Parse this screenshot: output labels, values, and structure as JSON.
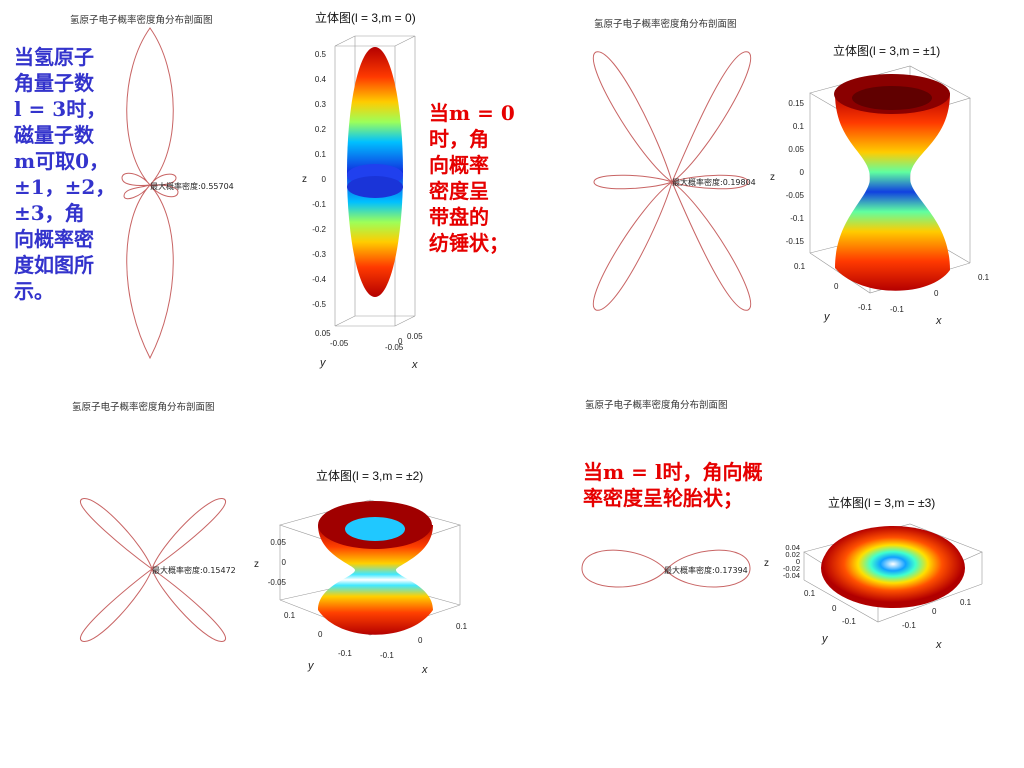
{
  "panels": [
    {
      "caption": "氢原子电子概率密度角分布剖面图",
      "max_label": "最大概率密度:0.55704",
      "title": "立体图(l = 3,m = 0)",
      "z_ticks": [
        "0.5",
        "0.4",
        "0.3",
        "0.2",
        "0.1",
        "0",
        "-0.1",
        "-0.2",
        "-0.3",
        "-0.4",
        "-0.5"
      ],
      "bottom_ticks": [
        "0.05",
        "-0.05",
        "0",
        "0.05",
        "-0.05"
      ],
      "x_label": "x",
      "y_label": "y",
      "z_label": "z"
    },
    {
      "caption": "氢原子电子概率密度角分布剖面图",
      "max_label": "最大概率密度:0.19804",
      "title": "立体图(l = 3,m = ±1)",
      "z_ticks": [
        "0.15",
        "0.1",
        "0.05",
        "0",
        "-0.05",
        "-0.1",
        "-0.15"
      ],
      "bottom_ticks": [
        "0.1",
        "0",
        "-0.1",
        "-0.1",
        "0",
        "0.1"
      ],
      "x_label": "x",
      "y_label": "y",
      "z_label": "z"
    },
    {
      "caption": "氢原子电子概率密度角分布剖面图",
      "max_label": "最大概率密度:0.15472",
      "title": "立体图(l = 3,m = ±2)",
      "z_ticks": [
        "0.05",
        "0",
        "-0.05"
      ],
      "bottom_ticks": [
        "0.1",
        "0",
        "-0.1",
        "-0.1",
        "0",
        "0.1"
      ],
      "x_label": "x",
      "y_label": "y",
      "z_label": "z"
    },
    {
      "caption": "氢原子电子概率密度角分布剖面图",
      "max_label": "最大概率密度:0.17394",
      "title": "立体图(l = 3,m = ±3)",
      "z_ticks": [
        "0.04",
        "0.02",
        "0",
        "-0.02",
        "-0.04"
      ],
      "bottom_ticks": [
        "0.1",
        "0",
        "-0.1",
        "-0.1",
        "0",
        "0.1"
      ],
      "x_label": "x",
      "y_label": "y",
      "z_label": "z"
    }
  ],
  "notes": {
    "intro": [
      "当氢原子",
      "角量子数",
      "l = 3时，",
      "磁量子数",
      "m可取0，",
      "±1，±2，",
      "±3，角",
      "向概率密",
      "度如图所",
      "示。"
    ],
    "m0": [
      "当m = 0",
      "时，角",
      "向概率",
      "密度呈",
      "带盘的",
      "纺锤状；"
    ],
    "ml": [
      "当m = l时，角向概",
      "率密度呈轮胎状；"
    ]
  },
  "colors": {
    "note_blue": "#3333cc",
    "note_red": "#e60000",
    "curve": "#c86464"
  }
}
